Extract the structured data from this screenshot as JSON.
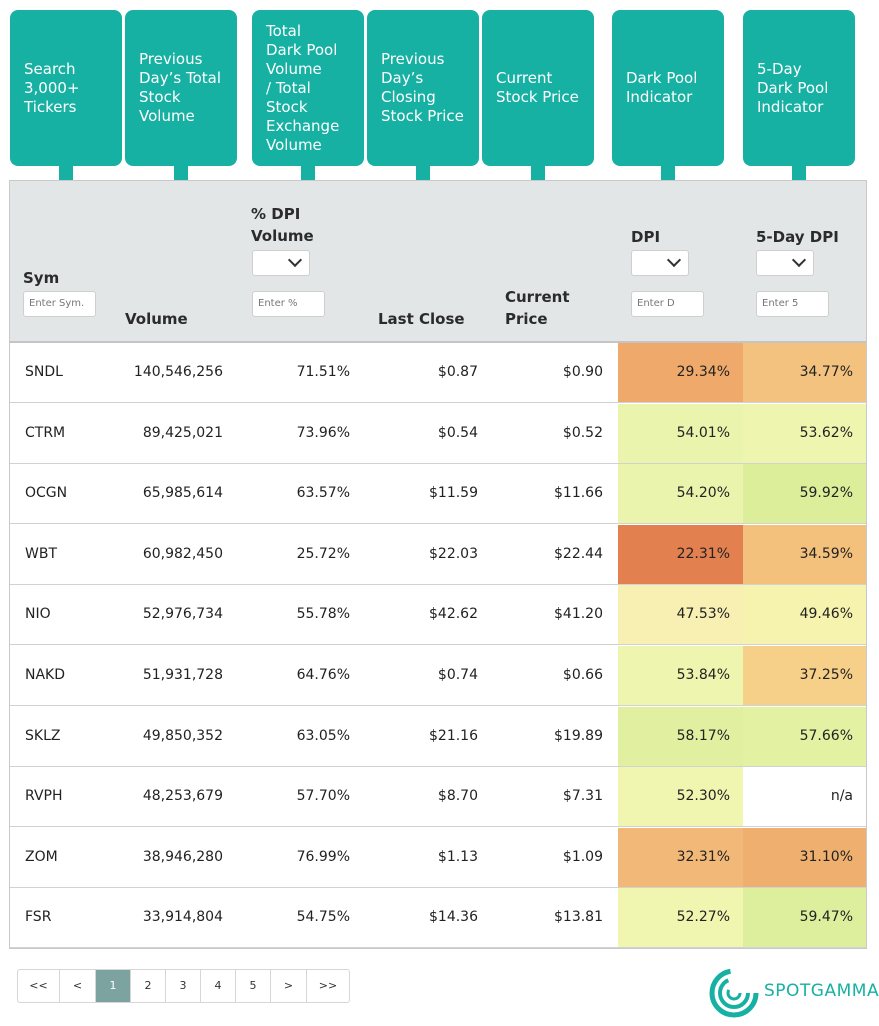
{
  "callouts": [
    "Search\n3,000+\nTickers",
    "Previous\nDay’s Total\nStock\nVolume",
    "Total\nDark Pool\nVolume\n/ Total\nStock\nExchange\nVolume",
    "Previous\nDay’s\nClosing\nStock Price",
    "Current\nStock Price",
    "Dark Pool\nIndicator",
    "5-Day\nDark Pool\nIndicator"
  ],
  "header": {
    "sym": "Sym",
    "volume": "Volume",
    "pct_dpi_volume": "% DPI\nVolume",
    "last_close": "Last Close",
    "current_price": "Current\nPrice",
    "dpi": "DPI",
    "dpi5": "5-Day DPI"
  },
  "filters": {
    "sym_placeholder": "Enter Sym.",
    "pct_placeholder": "Enter %",
    "dpi_placeholder": "Enter D",
    "dpi5_placeholder": "Enter 5"
  },
  "rows": [
    {
      "sym": "SNDL",
      "volume": "140,546,256",
      "pct": "71.51%",
      "last": "$0.87",
      "current": "$0.90",
      "dpi": "29.34%",
      "dpi5": "34.77%",
      "dpi_color": "#efaa6b",
      "dpi5_color": "#f4c27f"
    },
    {
      "sym": "CTRM",
      "volume": "89,425,021",
      "pct": "73.96%",
      "last": "$0.54",
      "current": "$0.52",
      "dpi": "54.01%",
      "dpi5": "53.62%",
      "dpi_color": "#ebf4ad",
      "dpi5_color": "#edf5ae"
    },
    {
      "sym": "OCGN",
      "volume": "65,985,614",
      "pct": "63.57%",
      "last": "$11.59",
      "current": "$11.66",
      "dpi": "54.20%",
      "dpi5": "59.92%",
      "dpi_color": "#ebf4ad",
      "dpi5_color": "#dcee9a"
    },
    {
      "sym": "WBT",
      "volume": "60,982,450",
      "pct": "25.72%",
      "last": "$22.03",
      "current": "$22.44",
      "dpi": "22.31%",
      "dpi5": "34.59%",
      "dpi_color": "#e2804f",
      "dpi5_color": "#f3c17c"
    },
    {
      "sym": "NIO",
      "volume": "52,976,734",
      "pct": "55.78%",
      "last": "$42.62",
      "current": "$41.20",
      "dpi": "47.53%",
      "dpi5": "49.46%",
      "dpi_color": "#f8f0b3",
      "dpi5_color": "#f5f3ae"
    },
    {
      "sym": "NAKD",
      "volume": "51,931,728",
      "pct": "64.76%",
      "last": "$0.74",
      "current": "$0.66",
      "dpi": "53.84%",
      "dpi5": "37.25%",
      "dpi_color": "#edf5ae",
      "dpi5_color": "#f6cf88"
    },
    {
      "sym": "SKLZ",
      "volume": "49,850,352",
      "pct": "63.05%",
      "last": "$21.16",
      "current": "$19.89",
      "dpi": "58.17%",
      "dpi5": "57.66%",
      "dpi_color": "#e0f0a0",
      "dpi5_color": "#e2f1a2"
    },
    {
      "sym": "RVPH",
      "volume": "48,253,679",
      "pct": "57.70%",
      "last": "$8.70",
      "current": "$7.31",
      "dpi": "52.30%",
      "dpi5": "n/a",
      "dpi_color": "#f0f6b0",
      "dpi5_color": "#ffffff"
    },
    {
      "sym": "ZOM",
      "volume": "38,946,280",
      "pct": "76.99%",
      "last": "$1.13",
      "current": "$1.09",
      "dpi": "32.31%",
      "dpi5": "31.10%",
      "dpi_color": "#f2b877",
      "dpi5_color": "#eeaf6f"
    },
    {
      "sym": "FSR",
      "volume": "33,914,804",
      "pct": "54.75%",
      "last": "$14.36",
      "current": "$13.81",
      "dpi": "52.27%",
      "dpi5": "59.47%",
      "dpi_color": "#f0f6b0",
      "dpi5_color": "#ddef9c"
    }
  ],
  "pagination": [
    "<<",
    "<",
    "1",
    "2",
    "3",
    "4",
    "5",
    ">",
    ">>"
  ],
  "pagination_active": "1",
  "brand": {
    "name": "SPOTGAMMA",
    "accent": "#17b1a3"
  }
}
